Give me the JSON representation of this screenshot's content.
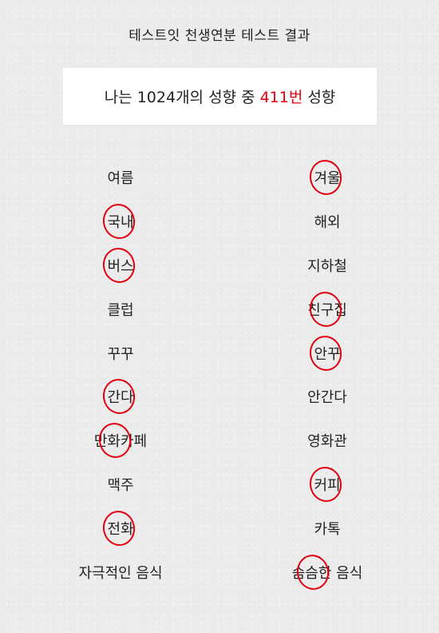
{
  "title": "테스트잇 천생연분 테스트 결과",
  "result": {
    "prefix": "나는 1024개의 성향 중",
    "number": "411번",
    "suffix": "성향"
  },
  "selection_color": "#e3000f",
  "pairs": [
    {
      "left": "여름",
      "right": "겨울",
      "selected": "right"
    },
    {
      "left": "국내",
      "right": "해외",
      "selected": "left"
    },
    {
      "left": "버스",
      "right": "지하철",
      "selected": "left"
    },
    {
      "left": "클럽",
      "right": "친구집",
      "selected": "right"
    },
    {
      "left": "꾸꾸",
      "right": "안꾸",
      "selected": "right"
    },
    {
      "left": "간다",
      "right": "안간다",
      "selected": "left"
    },
    {
      "left": "만화카페",
      "right": "영화관",
      "selected": "left"
    },
    {
      "left": "맥주",
      "right": "커피",
      "selected": "right"
    },
    {
      "left": "전화",
      "right": "카톡",
      "selected": "left"
    },
    {
      "left": "자극적인 음식",
      "right": "슴슴한 음식",
      "selected": "right"
    }
  ]
}
